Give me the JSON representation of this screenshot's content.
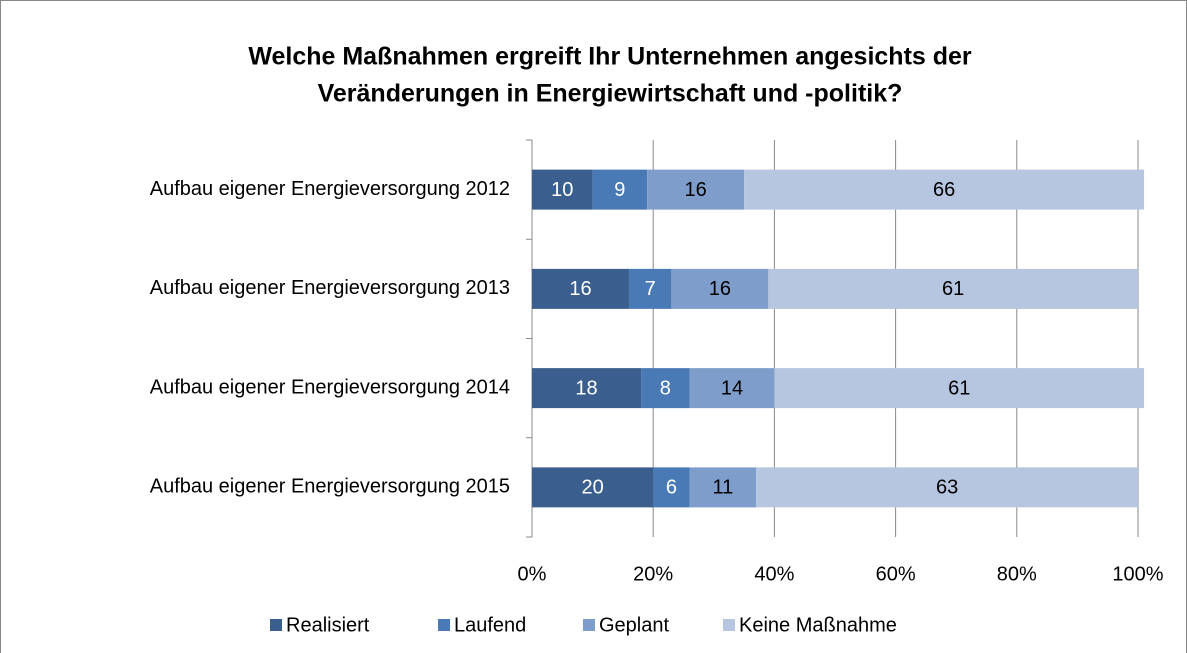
{
  "chart_data": {
    "type": "stacked_barh",
    "title": [
      "Welche Maßnahmen ergreift Ihr Unternehmen angesichts der",
      "Veränderungen in Energiewirtschaft und -politik?"
    ],
    "categories": [
      "Aufbau eigener Energieversorgung 2012",
      "Aufbau eigener Energieversorgung 2013",
      "Aufbau eigener Energieversorgung 2014",
      "Aufbau eigener Energieversorgung 2015"
    ],
    "series": [
      {
        "name": "Realisiert",
        "color": "#3a5f8e",
        "values": [
          10,
          16,
          18,
          20
        ]
      },
      {
        "name": "Laufend",
        "color": "#4a7ab5",
        "values": [
          9,
          7,
          8,
          6
        ]
      },
      {
        "name": "Geplant",
        "color": "#7f9dca",
        "values": [
          16,
          16,
          14,
          11
        ]
      },
      {
        "name": "Keine Maßnahme",
        "color": "#b6c5e0",
        "values": [
          66,
          61,
          61,
          63
        ]
      }
    ],
    "xlim": [
      0,
      100
    ],
    "xticks": [
      {
        "value": 0,
        "label": "0%"
      },
      {
        "value": 20,
        "label": "20%"
      },
      {
        "value": 40,
        "label": "40%"
      },
      {
        "value": 60,
        "label": "60%"
      },
      {
        "value": 80,
        "label": "80%"
      },
      {
        "value": 100,
        "label": "100%"
      }
    ],
    "grid": true,
    "legend": "bottom"
  }
}
